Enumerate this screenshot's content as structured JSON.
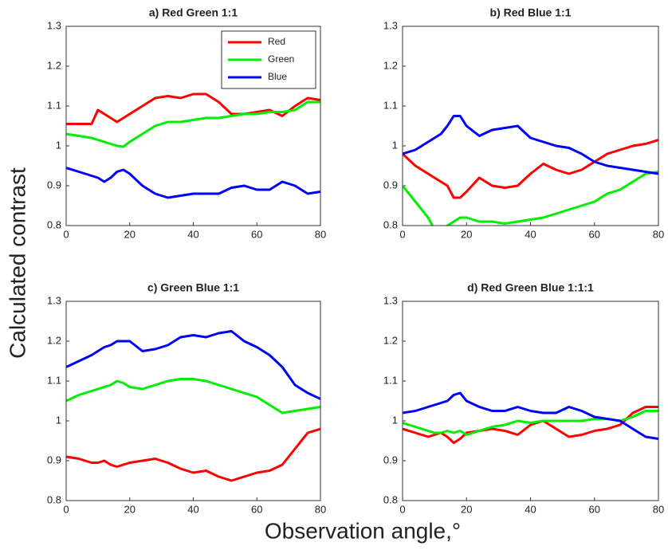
{
  "chart_data": [
    {
      "type": "line",
      "title": "a) Red Green 1:1",
      "x": [
        0,
        4,
        8,
        10,
        12,
        14,
        16,
        18,
        20,
        24,
        28,
        32,
        36,
        40,
        44,
        48,
        52,
        56,
        60,
        64,
        68,
        72,
        76,
        80
      ],
      "xlim": [
        0,
        80
      ],
      "xticks": [
        0,
        20,
        40,
        60,
        80
      ],
      "ylim": [
        0.8,
        1.3
      ],
      "yticks": [
        0.8,
        0.9,
        1,
        1.1,
        1.2,
        1.3
      ],
      "legend": "upper right",
      "series": [
        {
          "name": "Red",
          "color": "#ff0000",
          "values": [
            1.055,
            1.055,
            1.055,
            1.09,
            1.08,
            1.07,
            1.06,
            1.07,
            1.08,
            1.1,
            1.12,
            1.125,
            1.12,
            1.13,
            1.13,
            1.11,
            1.08,
            1.08,
            1.085,
            1.09,
            1.075,
            1.1,
            1.12,
            1.115
          ]
        },
        {
          "name": "Green",
          "color": "#00ee00",
          "values": [
            1.03,
            1.025,
            1.02,
            1.015,
            1.01,
            1.005,
            1.0,
            0.998,
            1.01,
            1.03,
            1.05,
            1.06,
            1.06,
            1.065,
            1.07,
            1.07,
            1.075,
            1.08,
            1.08,
            1.085,
            1.085,
            1.09,
            1.11,
            1.11
          ]
        },
        {
          "name": "Blue",
          "color": "#0000ff",
          "values": [
            0.945,
            0.935,
            0.925,
            0.92,
            0.91,
            0.92,
            0.935,
            0.94,
            0.93,
            0.9,
            0.88,
            0.87,
            0.875,
            0.88,
            0.88,
            0.88,
            0.895,
            0.9,
            0.89,
            0.89,
            0.91,
            0.9,
            0.88,
            0.885
          ]
        }
      ]
    },
    {
      "type": "line",
      "title": "b) Red Blue 1:1",
      "x": [
        0,
        4,
        8,
        10,
        12,
        14,
        16,
        18,
        20,
        24,
        28,
        32,
        36,
        40,
        44,
        48,
        52,
        56,
        60,
        64,
        68,
        72,
        76,
        80
      ],
      "xlim": [
        0,
        80
      ],
      "xticks": [
        0,
        20,
        40,
        60,
        80
      ],
      "ylim": [
        0.8,
        1.3
      ],
      "yticks": [
        0.8,
        0.9,
        1,
        1.1,
        1.2,
        1.3
      ],
      "series": [
        {
          "name": "Red",
          "color": "#ff0000",
          "values": [
            0.98,
            0.95,
            0.93,
            0.92,
            0.91,
            0.9,
            0.87,
            0.87,
            0.885,
            0.92,
            0.9,
            0.895,
            0.9,
            0.93,
            0.955,
            0.94,
            0.93,
            0.94,
            0.96,
            0.98,
            0.99,
            1.0,
            1.005,
            1.015
          ]
        },
        {
          "name": "Green",
          "color": "#00ee00",
          "values": [
            0.9,
            0.86,
            0.82,
            0.79,
            0.79,
            0.8,
            0.81,
            0.82,
            0.82,
            0.81,
            0.81,
            0.805,
            0.81,
            0.815,
            0.82,
            0.83,
            0.84,
            0.85,
            0.86,
            0.88,
            0.89,
            0.91,
            0.93,
            0.935
          ]
        },
        {
          "name": "Blue",
          "color": "#0000ff",
          "values": [
            0.98,
            0.99,
            1.01,
            1.02,
            1.03,
            1.05,
            1.075,
            1.075,
            1.05,
            1.025,
            1.04,
            1.045,
            1.05,
            1.02,
            1.01,
            1.0,
            0.995,
            0.98,
            0.96,
            0.95,
            0.945,
            0.94,
            0.935,
            0.93
          ]
        }
      ]
    },
    {
      "type": "line",
      "title": "c) Green Blue 1:1",
      "x": [
        0,
        4,
        8,
        10,
        12,
        14,
        16,
        18,
        20,
        24,
        28,
        32,
        36,
        40,
        44,
        48,
        52,
        56,
        60,
        64,
        68,
        72,
        76,
        80
      ],
      "xlim": [
        0,
        80
      ],
      "xticks": [
        0,
        20,
        40,
        60,
        80
      ],
      "ylim": [
        0.8,
        1.3
      ],
      "yticks": [
        0.8,
        0.9,
        1,
        1.1,
        1.2,
        1.3
      ],
      "series": [
        {
          "name": "Red",
          "color": "#ff0000",
          "values": [
            0.91,
            0.905,
            0.895,
            0.895,
            0.9,
            0.89,
            0.885,
            0.89,
            0.895,
            0.9,
            0.905,
            0.895,
            0.88,
            0.87,
            0.875,
            0.86,
            0.85,
            0.86,
            0.87,
            0.875,
            0.89,
            0.93,
            0.97,
            0.98
          ]
        },
        {
          "name": "Green",
          "color": "#00ee00",
          "values": [
            1.05,
            1.065,
            1.075,
            1.08,
            1.085,
            1.09,
            1.1,
            1.095,
            1.085,
            1.08,
            1.09,
            1.1,
            1.105,
            1.105,
            1.1,
            1.09,
            1.08,
            1.07,
            1.06,
            1.04,
            1.02,
            1.025,
            1.03,
            1.035
          ]
        },
        {
          "name": "Blue",
          "color": "#0000ff",
          "values": [
            1.135,
            1.15,
            1.165,
            1.175,
            1.185,
            1.19,
            1.2,
            1.2,
            1.2,
            1.175,
            1.18,
            1.19,
            1.21,
            1.215,
            1.21,
            1.22,
            1.225,
            1.2,
            1.185,
            1.165,
            1.135,
            1.09,
            1.07,
            1.055
          ]
        }
      ]
    },
    {
      "type": "line",
      "title": "d) Red Green Blue 1:1:1",
      "x": [
        0,
        4,
        8,
        10,
        12,
        14,
        16,
        18,
        20,
        24,
        28,
        32,
        36,
        40,
        44,
        48,
        52,
        56,
        60,
        64,
        68,
        72,
        76,
        80
      ],
      "xlim": [
        0,
        80
      ],
      "xticks": [
        0,
        20,
        40,
        60,
        80
      ],
      "ylim": [
        0.8,
        1.3
      ],
      "yticks": [
        0.8,
        0.9,
        1,
        1.1,
        1.2,
        1.3
      ],
      "series": [
        {
          "name": "Red",
          "color": "#ff0000",
          "values": [
            0.98,
            0.97,
            0.96,
            0.965,
            0.97,
            0.96,
            0.945,
            0.955,
            0.97,
            0.975,
            0.98,
            0.975,
            0.965,
            0.99,
            1.0,
            0.98,
            0.96,
            0.965,
            0.975,
            0.98,
            0.99,
            1.02,
            1.035,
            1.035
          ]
        },
        {
          "name": "Green",
          "color": "#00ee00",
          "values": [
            0.995,
            0.985,
            0.975,
            0.97,
            0.97,
            0.975,
            0.97,
            0.975,
            0.965,
            0.975,
            0.985,
            0.99,
            1.0,
            0.995,
            1.0,
            1.0,
            1.0,
            1.0,
            1.005,
            1.005,
            1.0,
            1.01,
            1.025,
            1.025
          ]
        },
        {
          "name": "Blue",
          "color": "#0000ff",
          "values": [
            1.02,
            1.025,
            1.035,
            1.04,
            1.045,
            1.05,
            1.065,
            1.07,
            1.05,
            1.035,
            1.025,
            1.025,
            1.035,
            1.025,
            1.02,
            1.02,
            1.035,
            1.025,
            1.01,
            1.005,
            1.0,
            0.98,
            0.96,
            0.955
          ]
        }
      ]
    }
  ],
  "ylabel": "Calculated contrast",
  "xlabel": "Observation angle,°"
}
